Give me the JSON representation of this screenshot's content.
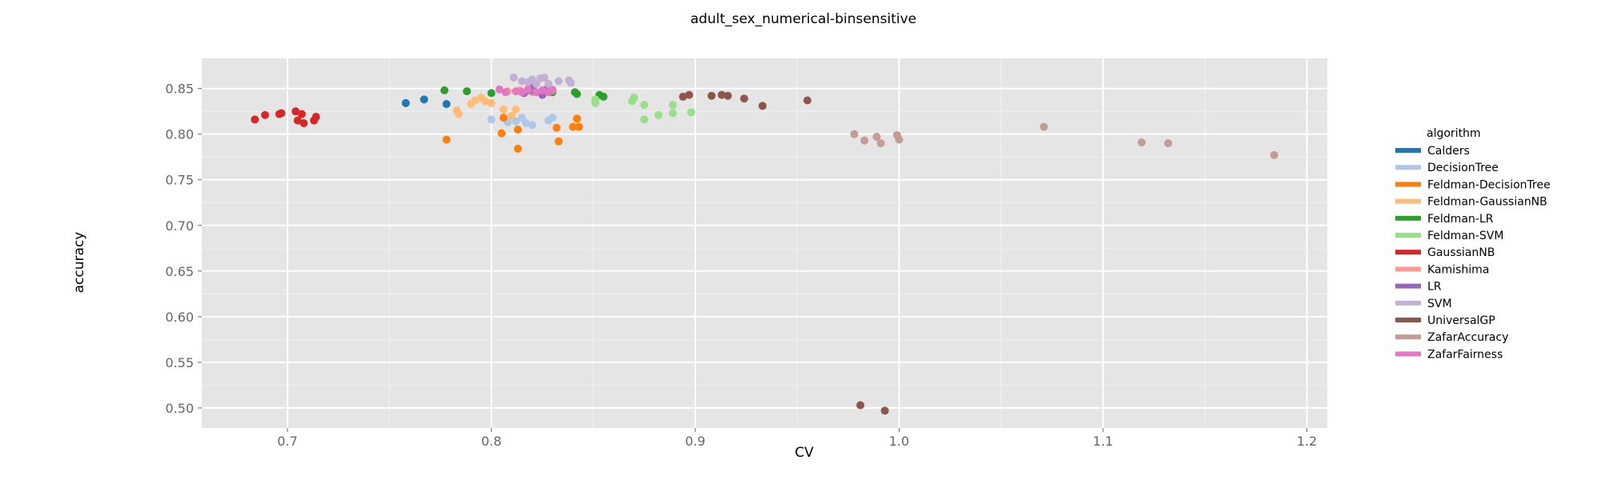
{
  "chart_data": {
    "type": "scatter",
    "title": "adult_sex_numerical-binsensitive",
    "xlabel": "CV",
    "ylabel": "accuracy",
    "xlim": [
      0.658,
      1.21
    ],
    "ylim": [
      0.478,
      0.883
    ],
    "xticks": [
      "0.7",
      "0.8",
      "0.9",
      "1.0",
      "1.1",
      "1.2"
    ],
    "xtick_values": [
      0.7,
      0.8,
      0.9,
      1.0,
      1.1,
      1.2
    ],
    "yticks": [
      "0.50",
      "0.55",
      "0.60",
      "0.65",
      "0.70",
      "0.75",
      "0.80",
      "0.85"
    ],
    "ytick_values": [
      0.5,
      0.55,
      0.6,
      0.65,
      0.7,
      0.75,
      0.8,
      0.85
    ],
    "grid": true,
    "legend_title": "algorithm",
    "legend_position": "right",
    "series": [
      {
        "name": "Calders",
        "color": "#1f77b4",
        "points": [
          [
            0.758,
            0.834
          ],
          [
            0.767,
            0.838
          ],
          [
            0.778,
            0.833
          ]
        ]
      },
      {
        "name": "DecisionTree",
        "color": "#aec7e8",
        "points": [
          [
            0.8,
            0.816
          ],
          [
            0.808,
            0.813
          ],
          [
            0.812,
            0.814
          ],
          [
            0.815,
            0.818
          ],
          [
            0.817,
            0.812
          ],
          [
            0.82,
            0.81
          ],
          [
            0.828,
            0.815
          ],
          [
            0.83,
            0.818
          ]
        ]
      },
      {
        "name": "Feldman-DecisionTree",
        "color": "#ff7f0e",
        "points": [
          [
            0.778,
            0.794
          ],
          [
            0.805,
            0.801
          ],
          [
            0.806,
            0.818
          ],
          [
            0.813,
            0.805
          ],
          [
            0.813,
            0.784
          ],
          [
            0.832,
            0.807
          ],
          [
            0.833,
            0.792
          ],
          [
            0.84,
            0.808
          ],
          [
            0.842,
            0.817
          ],
          [
            0.843,
            0.808
          ]
        ]
      },
      {
        "name": "Feldman-GaussianNB",
        "color": "#ffbb78",
        "points": [
          [
            0.783,
            0.826
          ],
          [
            0.784,
            0.822
          ],
          [
            0.79,
            0.833
          ],
          [
            0.792,
            0.837
          ],
          [
            0.795,
            0.84
          ],
          [
            0.797,
            0.836
          ],
          [
            0.8,
            0.834
          ],
          [
            0.806,
            0.827
          ],
          [
            0.812,
            0.827
          ],
          [
            0.81,
            0.82
          ]
        ]
      },
      {
        "name": "Feldman-LR",
        "color": "#2ca02c",
        "points": [
          [
            0.777,
            0.848
          ],
          [
            0.788,
            0.847
          ],
          [
            0.8,
            0.845
          ],
          [
            0.83,
            0.846
          ],
          [
            0.841,
            0.846
          ],
          [
            0.842,
            0.844
          ],
          [
            0.853,
            0.843
          ],
          [
            0.855,
            0.841
          ]
        ]
      },
      {
        "name": "Feldman-SVM",
        "color": "#98df8a",
        "points": [
          [
            0.851,
            0.838
          ],
          [
            0.851,
            0.834
          ],
          [
            0.869,
            0.836
          ],
          [
            0.87,
            0.84
          ],
          [
            0.875,
            0.832
          ],
          [
            0.875,
            0.816
          ],
          [
            0.882,
            0.821
          ],
          [
            0.889,
            0.832
          ],
          [
            0.889,
            0.823
          ],
          [
            0.898,
            0.824
          ]
        ]
      },
      {
        "name": "GaussianNB",
        "color": "#d62728",
        "points": [
          [
            0.684,
            0.816
          ],
          [
            0.689,
            0.821
          ],
          [
            0.696,
            0.822
          ],
          [
            0.697,
            0.823
          ],
          [
            0.704,
            0.825
          ],
          [
            0.705,
            0.815
          ],
          [
            0.707,
            0.822
          ],
          [
            0.708,
            0.812
          ],
          [
            0.713,
            0.815
          ],
          [
            0.714,
            0.819
          ]
        ]
      },
      {
        "name": "Kamishima",
        "color": "#ff9896",
        "points": [
          [
            0.808,
            0.847
          ],
          [
            0.814,
            0.848
          ],
          [
            0.82,
            0.846
          ],
          [
            0.826,
            0.847
          ]
        ]
      },
      {
        "name": "LR",
        "color": "#9467bd",
        "points": [
          [
            0.816,
            0.845
          ],
          [
            0.818,
            0.848
          ],
          [
            0.819,
            0.852
          ],
          [
            0.821,
            0.847
          ],
          [
            0.825,
            0.843
          ],
          [
            0.827,
            0.849
          ]
        ]
      },
      {
        "name": "SVM",
        "color": "#c5b0d5",
        "points": [
          [
            0.811,
            0.862
          ],
          [
            0.815,
            0.858
          ],
          [
            0.818,
            0.857
          ],
          [
            0.82,
            0.86
          ],
          [
            0.822,
            0.855
          ],
          [
            0.824,
            0.861
          ],
          [
            0.826,
            0.862
          ],
          [
            0.828,
            0.855
          ],
          [
            0.83,
            0.849
          ],
          [
            0.833,
            0.858
          ],
          [
            0.838,
            0.859
          ],
          [
            0.839,
            0.856
          ]
        ]
      },
      {
        "name": "UniversalGP",
        "color": "#8c564b",
        "points": [
          [
            0.894,
            0.841
          ],
          [
            0.897,
            0.843
          ],
          [
            0.908,
            0.842
          ],
          [
            0.913,
            0.843
          ],
          [
            0.916,
            0.842
          ],
          [
            0.924,
            0.839
          ],
          [
            0.933,
            0.831
          ],
          [
            0.955,
            0.837
          ],
          [
            0.981,
            0.503
          ],
          [
            0.993,
            0.497
          ]
        ]
      },
      {
        "name": "ZafarAccuracy",
        "color": "#c49c94",
        "points": [
          [
            0.978,
            0.8
          ],
          [
            0.983,
            0.793
          ],
          [
            0.989,
            0.797
          ],
          [
            0.991,
            0.79
          ],
          [
            0.999,
            0.799
          ],
          [
            1.0,
            0.794
          ],
          [
            1.071,
            0.808
          ],
          [
            1.119,
            0.791
          ],
          [
            1.132,
            0.79
          ],
          [
            1.184,
            0.777
          ]
        ]
      },
      {
        "name": "ZafarFairness",
        "color": "#e377c2",
        "points": [
          [
            0.804,
            0.849
          ],
          [
            0.807,
            0.846
          ],
          [
            0.812,
            0.847
          ],
          [
            0.815,
            0.846
          ],
          [
            0.818,
            0.849
          ],
          [
            0.822,
            0.846
          ],
          [
            0.825,
            0.848
          ],
          [
            0.828,
            0.846
          ],
          [
            0.83,
            0.848
          ]
        ]
      }
    ]
  }
}
